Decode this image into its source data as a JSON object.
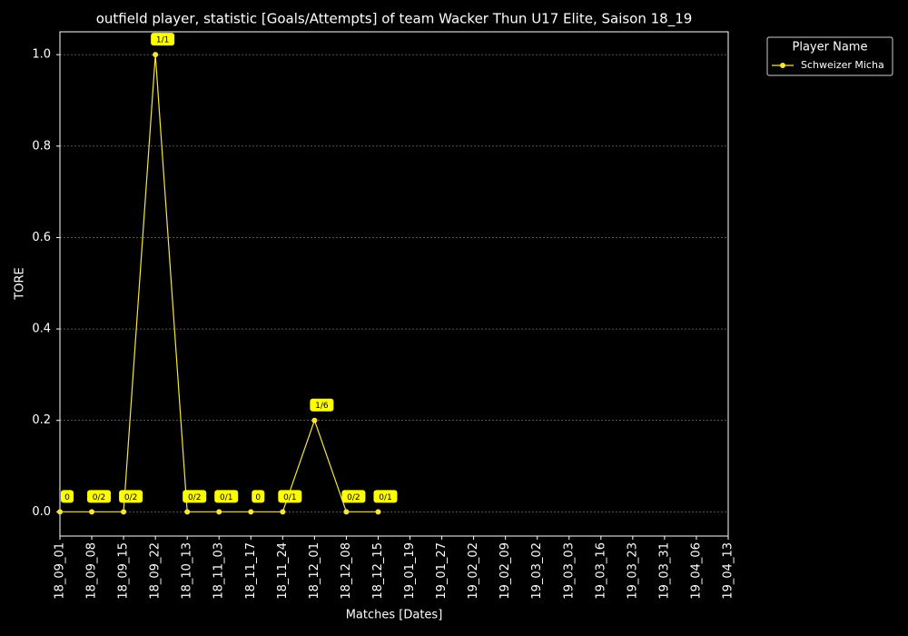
{
  "chart_data": {
    "type": "line",
    "title": "outfield player, statistic [Goals/Attempts] of team Wacker Thun U17 Elite, Saison 18_19",
    "x_label": "Matches [Dates]",
    "y_label": "TORE",
    "legend_title": "Player Name",
    "legend": "upper right outside",
    "categories": [
      "18_09_01",
      "18_09_08",
      "18_09_15",
      "18_09_22",
      "18_10_13",
      "18_11_03",
      "18_11_17",
      "18_11_24",
      "18_12_01",
      "18_12_08",
      "18_12_15",
      "19_01_19",
      "19_01_27",
      "19_02_02",
      "19_02_09",
      "19_03_02",
      "19_03_03",
      "19_03_16",
      "19_03_23",
      "19_03_31",
      "19_04_06",
      "19_04_13"
    ],
    "series": [
      {
        "name": "Schweizer Micha",
        "color": "#f7e63a",
        "values": [
          0,
          0,
          0,
          1,
          0,
          0,
          0,
          0,
          0.2,
          0,
          0,
          null,
          null,
          null,
          null,
          null,
          null,
          null,
          null,
          null,
          null,
          null
        ],
        "value_labels": [
          "0",
          "0/2",
          "0/2",
          "1/1",
          "0/2",
          "0/1",
          "0",
          "0/1",
          "1/6",
          "0/2",
          "0/1",
          null,
          null,
          null,
          null,
          null,
          null,
          null,
          null,
          null,
          null,
          null
        ]
      }
    ],
    "ylim": [
      -0.053,
      1.05
    ],
    "yticks": [
      {
        "value": 0,
        "label": "0.0"
      },
      0.2,
      0.4,
      0.6,
      0.8,
      {
        "value": 1,
        "label": "1.0"
      }
    ],
    "grid": true
  }
}
